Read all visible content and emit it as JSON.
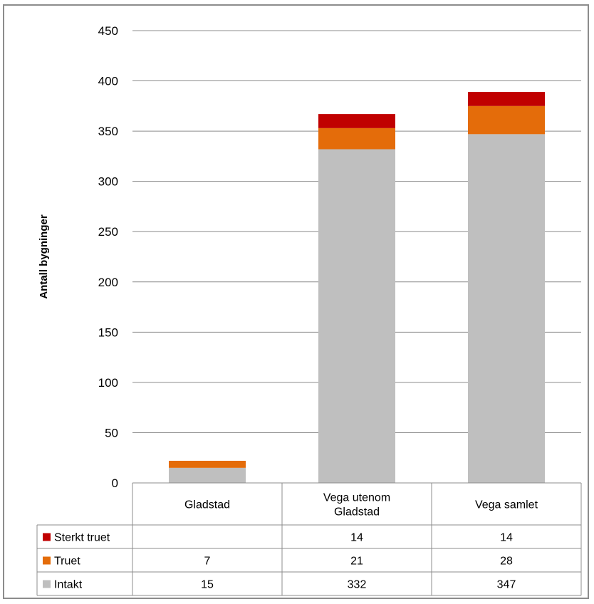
{
  "chart_data": {
    "type": "bar",
    "stacked": true,
    "ylabel": "Antall bygninger",
    "ylim": [
      0,
      450
    ],
    "yticks": [
      0,
      50,
      100,
      150,
      200,
      250,
      300,
      350,
      400,
      450
    ],
    "categories": [
      [
        "Gladstad"
      ],
      [
        "Vega utenom",
        "Gladstad"
      ],
      [
        "Vega samlet"
      ]
    ],
    "series": [
      {
        "name": "Intakt",
        "color": "#bfbfbf",
        "values": [
          15,
          332,
          347
        ]
      },
      {
        "name": "Truet",
        "color": "#e46c0a",
        "values": [
          7,
          21,
          28
        ]
      },
      {
        "name": "Sterkt truet",
        "color": "#c00000",
        "values": [
          null,
          14,
          14
        ]
      }
    ],
    "table_row_order": [
      "Sterkt truet",
      "Truet",
      "Intakt"
    ],
    "grid": true,
    "legend": "data-table"
  }
}
